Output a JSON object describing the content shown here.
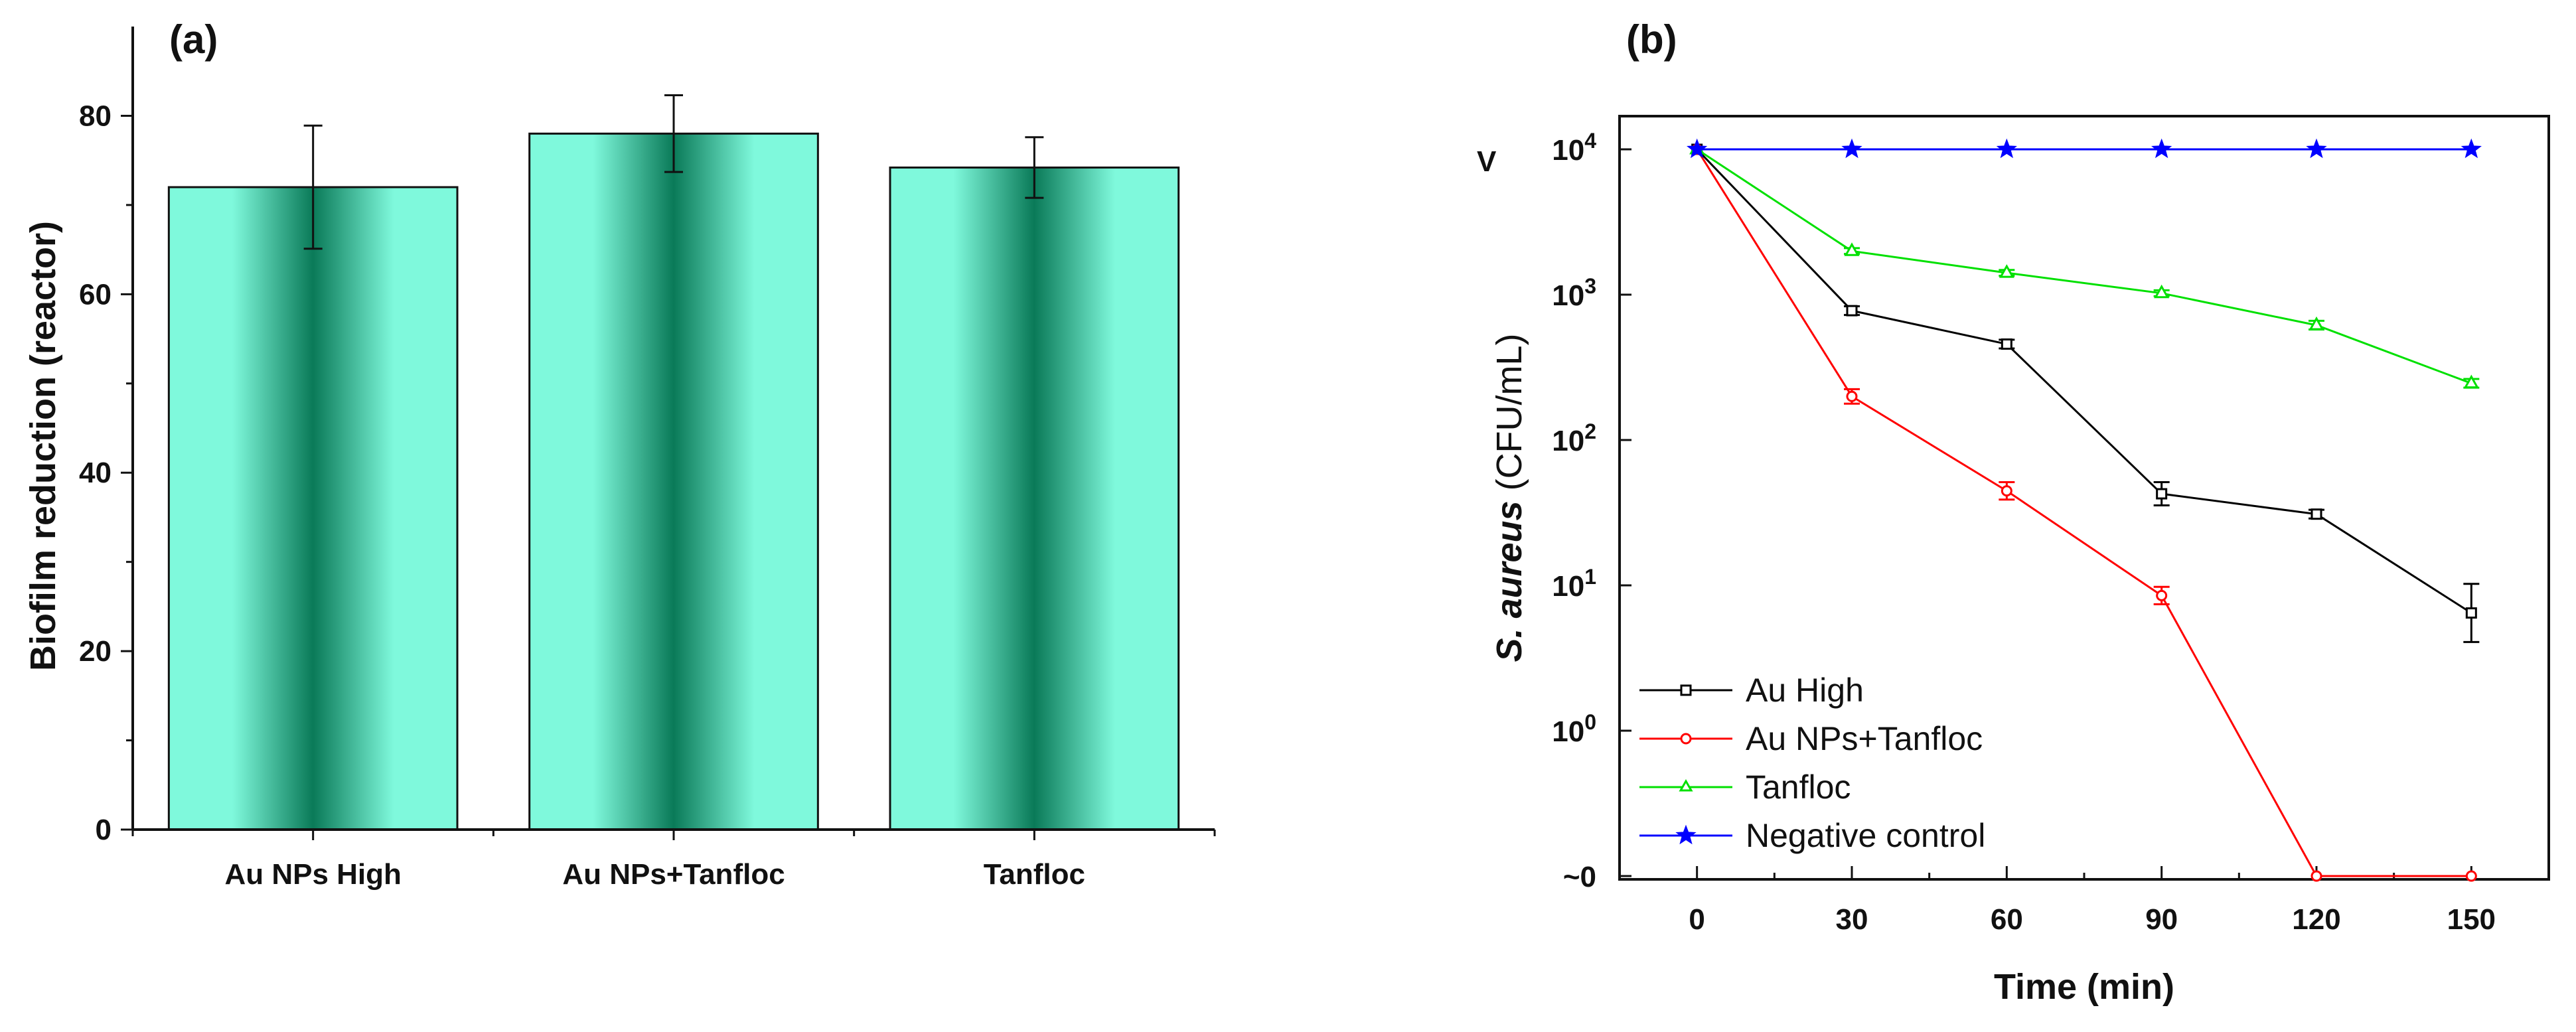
{
  "chart_data": [
    {
      "panel_label": "(a)",
      "type": "bar",
      "categories": [
        "Au NPs High",
        "Au NPs+Tanfloc",
        "Tanfloc"
      ],
      "values": [
        72,
        78,
        74.2
      ],
      "errors": [
        6.9,
        4.3,
        3.4
      ],
      "ylabel": "Biofilm reduction (reactor)",
      "xlabel": "",
      "ylim": [
        0,
        90
      ],
      "yticks": [
        "0",
        "20",
        "40",
        "60",
        "80"
      ],
      "bar_color": "#7ff9dc",
      "bar_center_color": "#0a7a58"
    },
    {
      "panel_label": "(b)",
      "type": "line",
      "xlabel": "Time (min)",
      "ylabel_italic": "S. aureus",
      "ylabel_rest": " (CFU/mL)",
      "xlim": [
        -15,
        165
      ],
      "xticks": [
        "0",
        "30",
        "60",
        "90",
        "120",
        "150"
      ],
      "yticks": [
        {
          "base": "~0",
          "exp": ""
        },
        {
          "base": "10",
          "exp": "0"
        },
        {
          "base": "10",
          "exp": "1"
        },
        {
          "base": "10",
          "exp": "2"
        },
        {
          "base": "10",
          "exp": "3"
        },
        {
          "base": "10",
          "exp": "4"
        }
      ],
      "y_break_label": "V",
      "x": [
        0,
        30,
        60,
        90,
        120,
        150
      ],
      "series": [
        {
          "name": "Au High",
          "color": "#000000",
          "marker": "square",
          "log_values": [
            4,
            2.89,
            2.66,
            1.63,
            1.49,
            0.81
          ],
          "log_errors": [
            0,
            0.03,
            0.03,
            0.08,
            0.03,
            0.2
          ]
        },
        {
          "name": "Au NPs+Tanfloc",
          "color": "#ff0000",
          "marker": "circle",
          "log_values": [
            4,
            2.3,
            1.65,
            0.93,
            -1,
            -1
          ],
          "log_errors": [
            0,
            0.05,
            0.06,
            0.06,
            0,
            0
          ]
        },
        {
          "name": "Tanfloc",
          "color": "#00e000",
          "marker": "triangle",
          "log_values": [
            4,
            3.3,
            3.15,
            3.01,
            2.79,
            2.39
          ],
          "log_errors": [
            0,
            0.02,
            0.02,
            0.02,
            0.03,
            0.03
          ]
        },
        {
          "name": "Negative control",
          "color": "#0000ff",
          "marker": "star",
          "log_values": [
            4,
            4,
            4,
            4,
            4,
            4
          ],
          "log_errors": [
            0,
            0,
            0,
            0,
            0,
            0
          ]
        }
      ]
    }
  ]
}
